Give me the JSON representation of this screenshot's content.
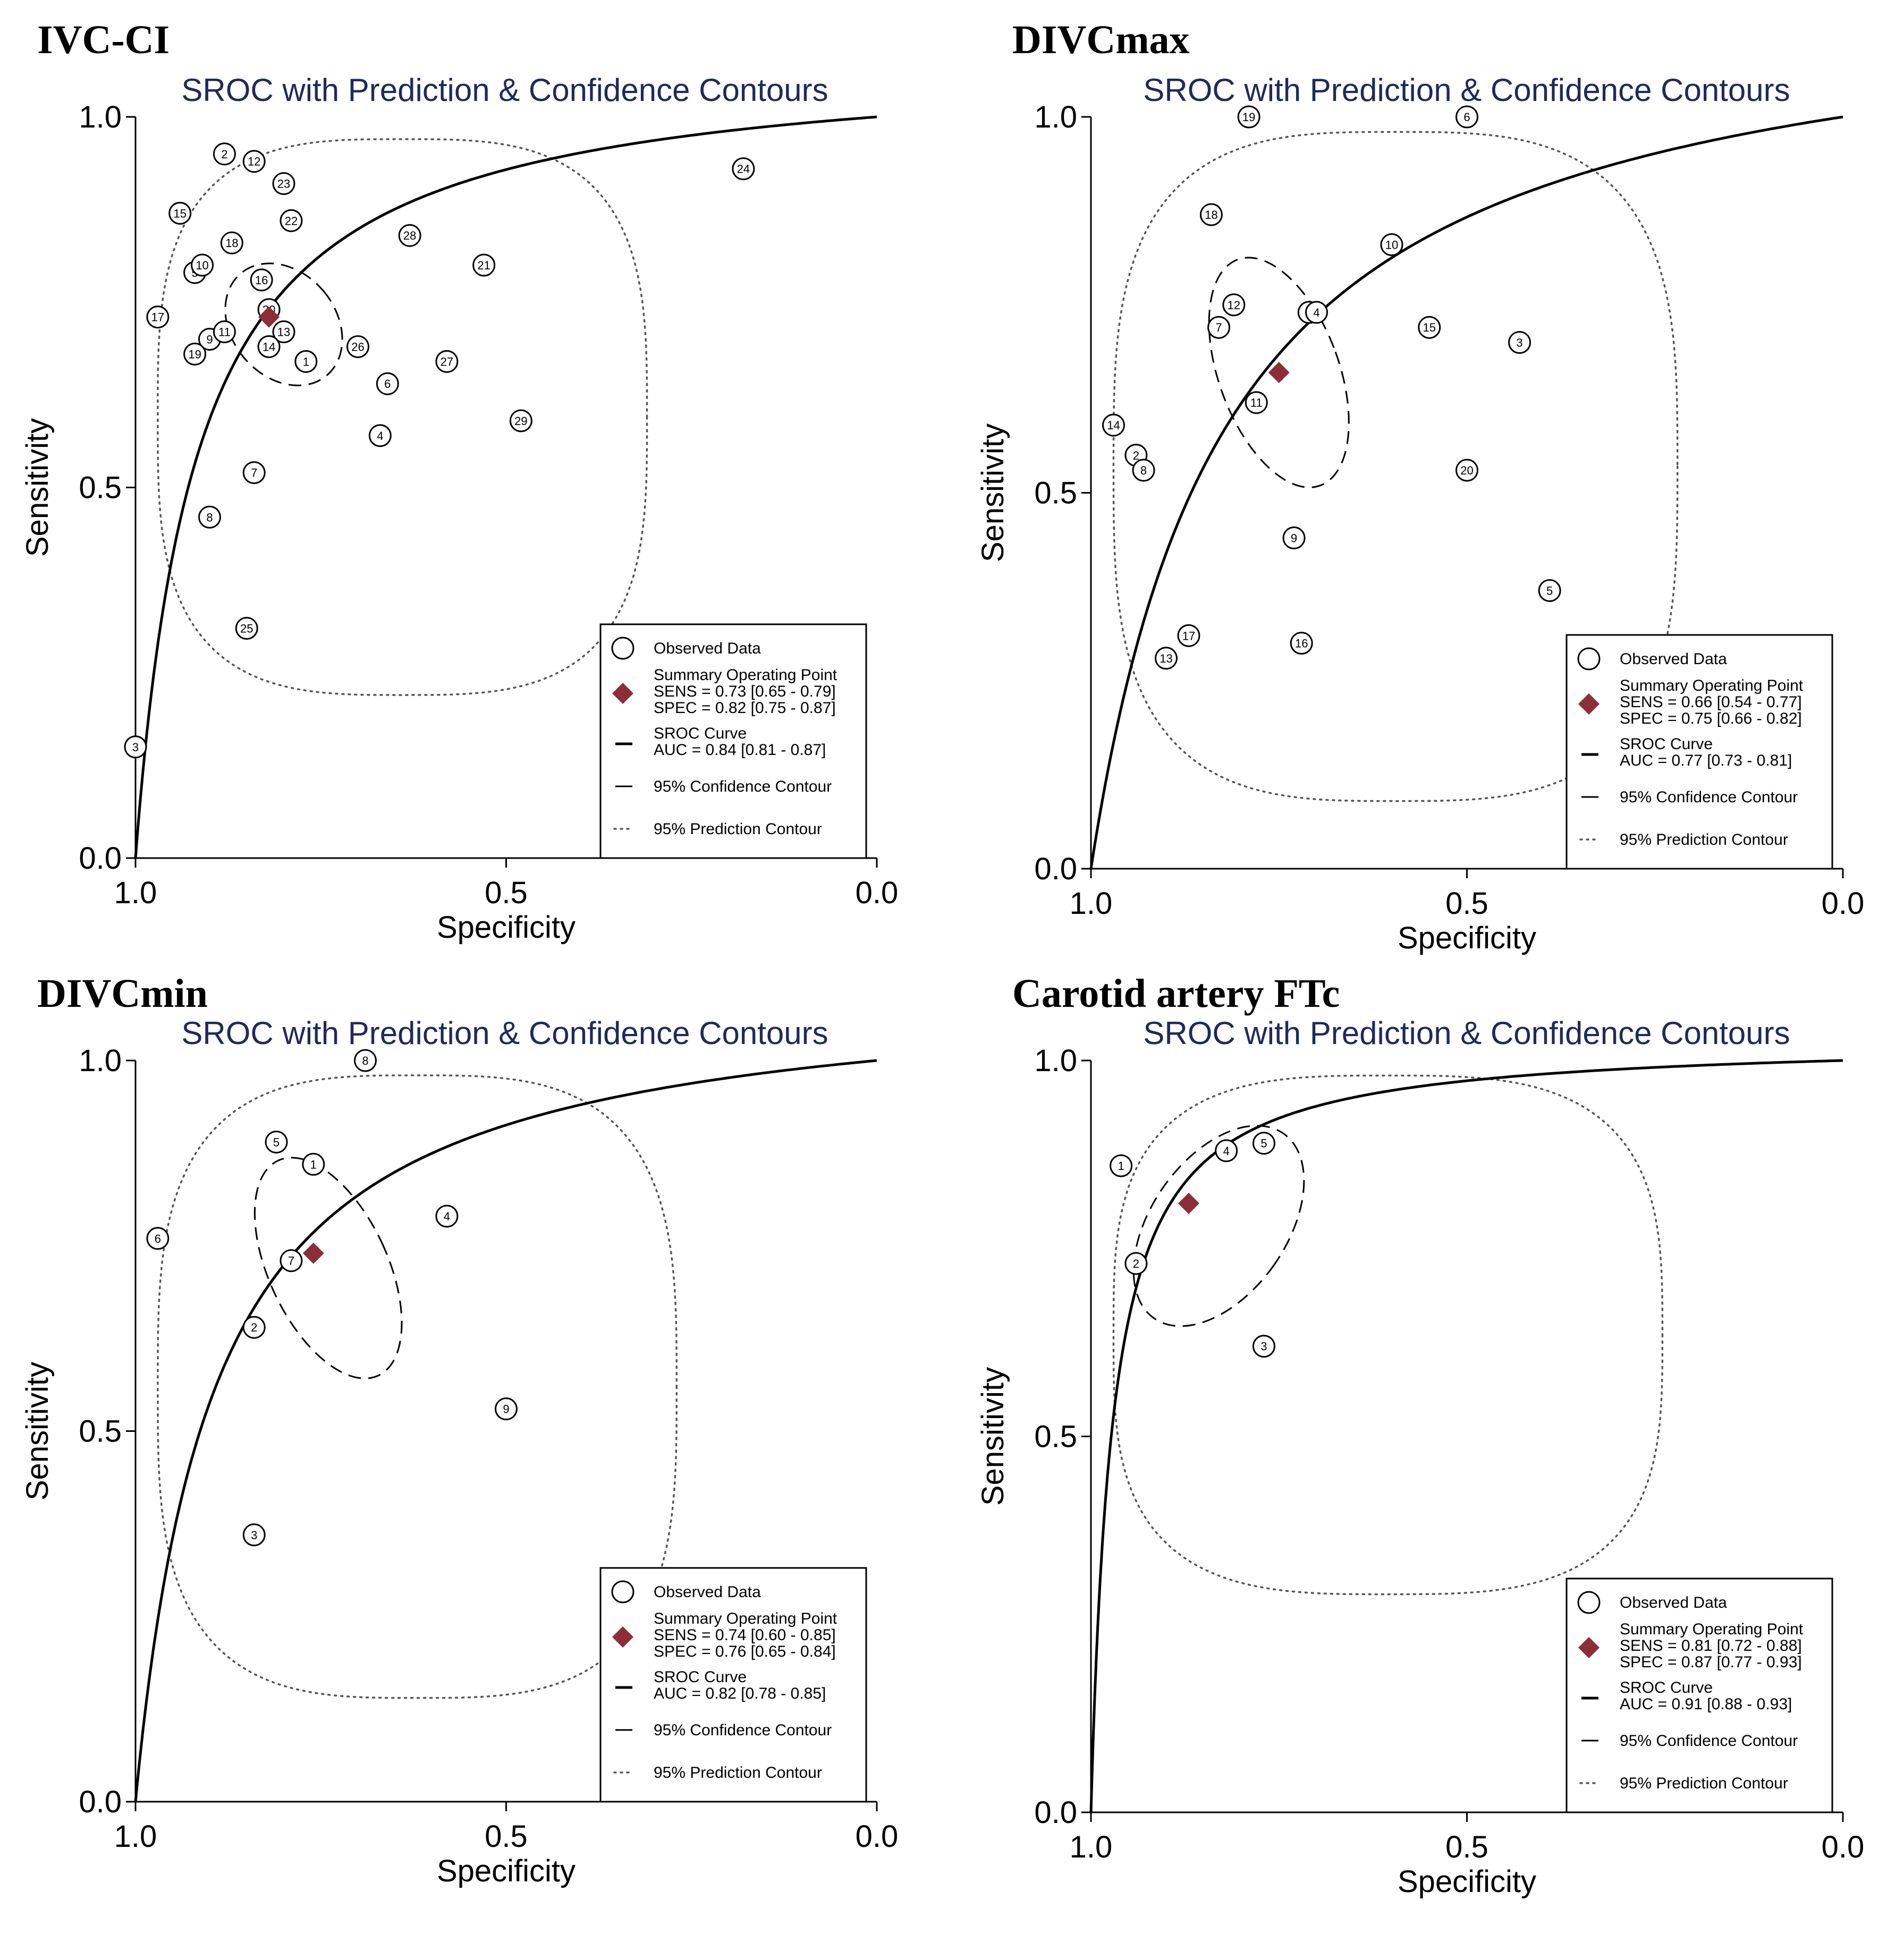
{
  "colors": {
    "summary": "#8b2e3a",
    "title": "#1f2a5a"
  },
  "chart_data": [
    {
      "type": "scatter",
      "panel_title": "IVC-CI",
      "title": "SROC with Prediction & Confidence Contours",
      "xlabel": "Specificity",
      "ylabel": "Sensitivity",
      "xlim": [
        1.0,
        0.0
      ],
      "ylim": [
        0.0,
        1.0
      ],
      "xticks": [
        "1.0",
        "0.5",
        "0.0"
      ],
      "yticks": [
        "0.0",
        "0.5",
        "1.0"
      ],
      "auc": 0.84,
      "studies": [
        {
          "id": "1",
          "spec": 0.77,
          "sens": 0.67
        },
        {
          "id": "2",
          "spec": 0.88,
          "sens": 0.95
        },
        {
          "id": "3",
          "spec": 1.0,
          "sens": 0.15
        },
        {
          "id": "4",
          "spec": 0.67,
          "sens": 0.57
        },
        {
          "id": "5",
          "spec": 0.92,
          "sens": 0.79
        },
        {
          "id": "6",
          "spec": 0.66,
          "sens": 0.64
        },
        {
          "id": "7",
          "spec": 0.84,
          "sens": 0.52
        },
        {
          "id": "8",
          "spec": 0.9,
          "sens": 0.46
        },
        {
          "id": "9",
          "spec": 0.9,
          "sens": 0.7
        },
        {
          "id": "10",
          "spec": 0.91,
          "sens": 0.8
        },
        {
          "id": "12",
          "spec": 0.84,
          "sens": 0.94
        },
        {
          "id": "13",
          "spec": 0.8,
          "sens": 0.71
        },
        {
          "id": "14",
          "spec": 0.82,
          "sens": 0.69
        },
        {
          "id": "15",
          "spec": 0.94,
          "sens": 0.87
        },
        {
          "id": "16",
          "spec": 0.83,
          "sens": 0.78
        },
        {
          "id": "17",
          "spec": 0.97,
          "sens": 0.73
        },
        {
          "id": "18",
          "spec": 0.87,
          "sens": 0.83
        },
        {
          "id": "19",
          "spec": 0.92,
          "sens": 0.68
        },
        {
          "id": "20",
          "spec": 0.82,
          "sens": 0.74
        },
        {
          "id": "21",
          "spec": 0.53,
          "sens": 0.8
        },
        {
          "id": "22",
          "spec": 0.79,
          "sens": 0.86
        },
        {
          "id": "23",
          "spec": 0.8,
          "sens": 0.91
        },
        {
          "id": "24",
          "spec": 0.18,
          "sens": 0.93
        },
        {
          "id": "25",
          "spec": 0.85,
          "sens": 0.31
        },
        {
          "id": "26",
          "spec": 0.7,
          "sens": 0.69
        },
        {
          "id": "27",
          "spec": 0.58,
          "sens": 0.67
        },
        {
          "id": "28",
          "spec": 0.63,
          "sens": 0.84
        },
        {
          "id": "29",
          "spec": 0.48,
          "sens": 0.59
        },
        {
          "id": "11",
          "spec": 0.88,
          "sens": 0.71
        }
      ],
      "summary_point": {
        "spec": 0.82,
        "sens": 0.73
      },
      "confidence_contour": {
        "center_spec": 0.8,
        "center_sens": 0.72,
        "rx": 0.07,
        "ry": 0.09,
        "angle": -40
      },
      "prediction_contour": {
        "spec_min": 0.31,
        "spec_max": 0.97,
        "sens_min": 0.22,
        "sens_max": 0.97
      },
      "legend": {
        "observed": "Observed Data",
        "summary_title": "Summary Operating Point",
        "sens": "SENS = 0.73 [0.65 - 0.79]",
        "spec": "SPEC = 0.82 [0.75 - 0.87]",
        "sroc_title": "SROC Curve",
        "auc": "AUC = 0.84 [0.81 - 0.87]",
        "confidence": "95% Confidence Contour",
        "prediction": "95% Prediction Contour"
      }
    },
    {
      "type": "scatter",
      "panel_title": "DIVCmax",
      "title": "SROC with Prediction & Confidence Contours",
      "xlabel": "Specificity",
      "ylabel": "Sensitivity",
      "xlim": [
        1.0,
        0.0
      ],
      "ylim": [
        0.0,
        1.0
      ],
      "xticks": [
        "1.0",
        "0.5",
        "0.0"
      ],
      "yticks": [
        "0.0",
        "0.5",
        "1.0"
      ],
      "auc": 0.77,
      "studies": [
        {
          "id": "1",
          "spec": 0.71,
          "sens": 0.74
        },
        {
          "id": "2",
          "spec": 0.94,
          "sens": 0.55
        },
        {
          "id": "3",
          "spec": 0.43,
          "sens": 0.7
        },
        {
          "id": "4",
          "spec": 0.7,
          "sens": 0.74
        },
        {
          "id": "5",
          "spec": 0.39,
          "sens": 0.37
        },
        {
          "id": "6",
          "spec": 0.5,
          "sens": 1.0
        },
        {
          "id": "7",
          "spec": 0.83,
          "sens": 0.72
        },
        {
          "id": "9",
          "spec": 0.73,
          "sens": 0.44
        },
        {
          "id": "10",
          "spec": 0.6,
          "sens": 0.83
        },
        {
          "id": "11",
          "spec": 0.78,
          "sens": 0.62
        },
        {
          "id": "12",
          "spec": 0.81,
          "sens": 0.75
        },
        {
          "id": "13",
          "spec": 0.9,
          "sens": 0.28
        },
        {
          "id": "14",
          "spec": 0.97,
          "sens": 0.59
        },
        {
          "id": "15",
          "spec": 0.55,
          "sens": 0.72
        },
        {
          "id": "16",
          "spec": 0.72,
          "sens": 0.3
        },
        {
          "id": "17",
          "spec": 0.87,
          "sens": 0.31
        },
        {
          "id": "18",
          "spec": 0.84,
          "sens": 0.87
        },
        {
          "id": "19",
          "spec": 0.79,
          "sens": 1.0
        },
        {
          "id": "20",
          "spec": 0.5,
          "sens": 0.53
        },
        {
          "id": "8",
          "spec": 0.93,
          "sens": 0.53
        }
      ],
      "summary_point": {
        "spec": 0.75,
        "sens": 0.66
      },
      "confidence_contour": {
        "center_spec": 0.75,
        "center_sens": 0.66,
        "rx": 0.08,
        "ry": 0.16,
        "angle": -20
      },
      "prediction_contour": {
        "spec_min": 0.22,
        "spec_max": 0.97,
        "sens_min": 0.09,
        "sens_max": 0.98
      },
      "legend": {
        "observed": "Observed Data",
        "summary_title": "Summary Operating Point",
        "sens": "SENS = 0.66 [0.54 - 0.77]",
        "spec": "SPEC = 0.75 [0.66 - 0.82]",
        "sroc_title": "SROC Curve",
        "auc": "AUC = 0.77 [0.73 - 0.81]",
        "confidence": "95% Confidence Contour",
        "prediction": "95% Prediction Contour"
      }
    },
    {
      "type": "scatter",
      "panel_title": "DIVCmin",
      "title": "SROC with Prediction & Confidence Contours",
      "xlabel": "Specificity",
      "ylabel": "Sensitivity",
      "xlim": [
        1.0,
        0.0
      ],
      "ylim": [
        0.0,
        1.0
      ],
      "xticks": [
        "1.0",
        "0.5",
        "0.0"
      ],
      "yticks": [
        "0.0",
        "0.5",
        "1.0"
      ],
      "auc": 0.82,
      "studies": [
        {
          "id": "1",
          "spec": 0.76,
          "sens": 0.86
        },
        {
          "id": "2",
          "spec": 0.84,
          "sens": 0.64
        },
        {
          "id": "3",
          "spec": 0.84,
          "sens": 0.36
        },
        {
          "id": "4",
          "spec": 0.58,
          "sens": 0.79
        },
        {
          "id": "5",
          "spec": 0.81,
          "sens": 0.89
        },
        {
          "id": "6",
          "spec": 0.97,
          "sens": 0.76
        },
        {
          "id": "7",
          "spec": 0.79,
          "sens": 0.73
        },
        {
          "id": "8",
          "spec": 0.69,
          "sens": 1.0
        },
        {
          "id": "9",
          "spec": 0.5,
          "sens": 0.53
        }
      ],
      "summary_point": {
        "spec": 0.76,
        "sens": 0.74
      },
      "confidence_contour": {
        "center_spec": 0.74,
        "center_sens": 0.72,
        "rx": 0.08,
        "ry": 0.16,
        "angle": -25
      },
      "prediction_contour": {
        "spec_min": 0.27,
        "spec_max": 0.97,
        "sens_min": 0.14,
        "sens_max": 0.98
      },
      "legend": {
        "observed": "Observed Data",
        "summary_title": "Summary Operating Point",
        "sens": "SENS = 0.74 [0.60 - 0.85]",
        "spec": "SPEC = 0.76 [0.65 - 0.84]",
        "sroc_title": "SROC Curve",
        "auc": "AUC = 0.82 [0.78 - 0.85]",
        "confidence": "95% Confidence Contour",
        "prediction": "95% Prediction Contour"
      }
    },
    {
      "type": "scatter",
      "panel_title": "Carotid artery FTc",
      "title": "SROC with Prediction & Confidence Contours",
      "xlabel": "Specificity",
      "ylabel": "Sensitivity",
      "xlim": [
        1.0,
        0.0
      ],
      "ylim": [
        0.0,
        1.0
      ],
      "xticks": [
        "1.0",
        "0.5",
        "0.0"
      ],
      "yticks": [
        "0.0",
        "0.5",
        "1.0"
      ],
      "auc": 0.91,
      "studies": [
        {
          "id": "1",
          "spec": 0.96,
          "sens": 0.86
        },
        {
          "id": "2",
          "spec": 0.94,
          "sens": 0.73
        },
        {
          "id": "3",
          "spec": 0.77,
          "sens": 0.62
        },
        {
          "id": "4",
          "spec": 0.82,
          "sens": 0.88
        },
        {
          "id": "5",
          "spec": 0.77,
          "sens": 0.89
        }
      ],
      "summary_point": {
        "spec": 0.87,
        "sens": 0.81
      },
      "confidence_contour": {
        "center_spec": 0.83,
        "center_sens": 0.78,
        "rx": 0.09,
        "ry": 0.15,
        "angle": 35
      },
      "prediction_contour": {
        "spec_min": 0.24,
        "spec_max": 0.97,
        "sens_min": 0.29,
        "sens_max": 0.98
      },
      "legend": {
        "observed": "Observed Data",
        "summary_title": "Summary Operating Point",
        "sens": "SENS = 0.81 [0.72 - 0.88]",
        "spec": "SPEC = 0.87 [0.77 - 0.93]",
        "sroc_title": "SROC Curve",
        "auc": "AUC = 0.91 [0.88 - 0.93]",
        "confidence": "95% Confidence Contour",
        "prediction": "95% Prediction Contour"
      }
    }
  ]
}
